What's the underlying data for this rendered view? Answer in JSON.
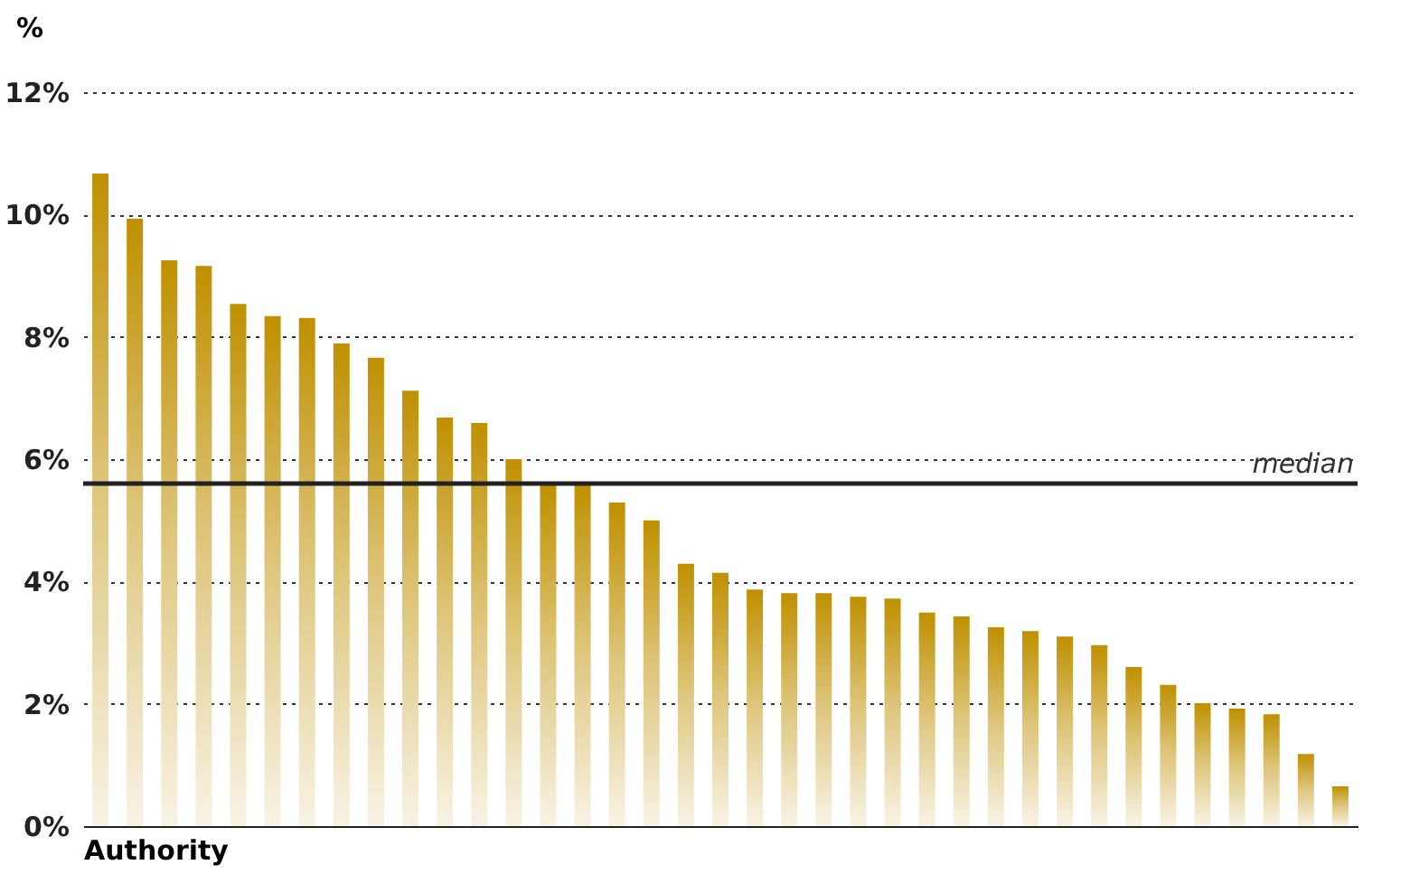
{
  "chart_data": {
    "type": "bar",
    "xlabel": "Authority",
    "ylabel": "%",
    "categories": [
      null,
      null,
      null,
      null,
      null,
      null,
      null,
      null,
      null,
      null,
      null,
      null,
      null,
      null,
      null,
      null,
      null,
      null,
      null,
      null,
      null,
      null,
      null,
      null,
      null,
      null,
      null,
      null,
      null,
      null,
      null,
      null,
      null,
      null,
      null,
      null,
      null
    ],
    "values": [
      10.67,
      9.93,
      9.25,
      9.16,
      8.54,
      8.34,
      8.31,
      7.89,
      7.66,
      7.12,
      6.68,
      6.59,
      6.0,
      5.59,
      5.59,
      5.29,
      5.0,
      4.29,
      4.14,
      3.87,
      3.81,
      3.81,
      3.75,
      3.72,
      3.49,
      3.43,
      3.25,
      3.19,
      3.1,
      2.96,
      2.6,
      2.31,
      2.01,
      1.92,
      1.83,
      1.18,
      0.65
    ],
    "color": "#bf9000",
    "ylim": [
      0,
      12
    ],
    "yticks": [
      {
        "value": 0,
        "label": "0%"
      },
      {
        "value": 2,
        "label": "2%"
      },
      {
        "value": 4,
        "label": "4%"
      },
      {
        "value": 6,
        "label": "6%"
      },
      {
        "value": 8,
        "label": "8%"
      },
      {
        "value": 10,
        "label": "10%"
      },
      {
        "value": 12,
        "label": "12%"
      }
    ],
    "grid": "y",
    "tick_labels": "y",
    "ref_lines": [
      {
        "axis": "y",
        "value": 5.6,
        "label": "median",
        "color": "#222222"
      }
    ]
  }
}
